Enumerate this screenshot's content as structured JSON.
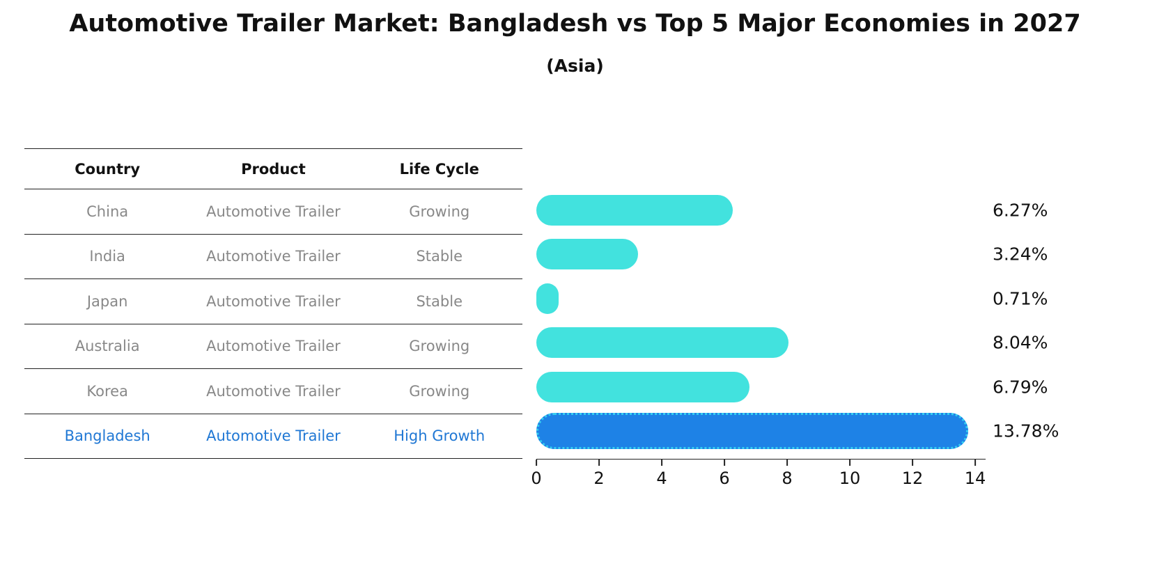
{
  "title": "Automotive Trailer Market: Bangladesh vs Top 5 Major Economies in 2027",
  "subtitle": "(Asia)",
  "colors": {
    "bar_color": "#42E2DE",
    "highlight_bar_color": "#1E82E6",
    "highlight_text_color": "#1F77D4",
    "row_text_color": "#888888"
  },
  "table": {
    "headers": [
      "Country",
      "Product",
      "Life Cycle"
    ]
  },
  "chart_data": {
    "type": "bar",
    "orientation": "horizontal",
    "title": "Automotive Trailer Market: Bangladesh vs Top 5 Major Economies in 2027",
    "subtitle": "(Asia)",
    "xlim": [
      0,
      14
    ],
    "xticks": [
      0,
      2,
      4,
      6,
      8,
      10,
      12,
      14
    ],
    "categories": [
      "China",
      "India",
      "Japan",
      "Australia",
      "Korea",
      "Bangladesh"
    ],
    "values": [
      6.27,
      3.24,
      0.71,
      8.04,
      6.79,
      13.78
    ],
    "value_labels": [
      "6.27%",
      "3.24%",
      "0.71%",
      "8.04%",
      "6.79%",
      "13.78%"
    ],
    "highlight_index": 5,
    "rows": [
      {
        "country": "China",
        "product": "Automotive Trailer",
        "life_cycle": "Growing",
        "value": 6.27,
        "value_label": "6.27%",
        "highlight": false
      },
      {
        "country": "India",
        "product": "Automotive Trailer",
        "life_cycle": "Stable",
        "value": 3.24,
        "value_label": "3.24%",
        "highlight": false
      },
      {
        "country": "Japan",
        "product": "Automotive Trailer",
        "life_cycle": "Stable",
        "value": 0.71,
        "value_label": "0.71%",
        "highlight": false
      },
      {
        "country": "Australia",
        "product": "Automotive Trailer",
        "life_cycle": "Growing",
        "value": 8.04,
        "value_label": "8.04%",
        "highlight": false
      },
      {
        "country": "Korea",
        "product": "Automotive Trailer",
        "life_cycle": "Growing",
        "value": 6.79,
        "value_label": "6.79%",
        "highlight": false
      },
      {
        "country": "Bangladesh",
        "product": "Automotive Trailer",
        "life_cycle": "High Growth",
        "value": 13.78,
        "value_label": "13.78%",
        "highlight": true
      }
    ]
  }
}
